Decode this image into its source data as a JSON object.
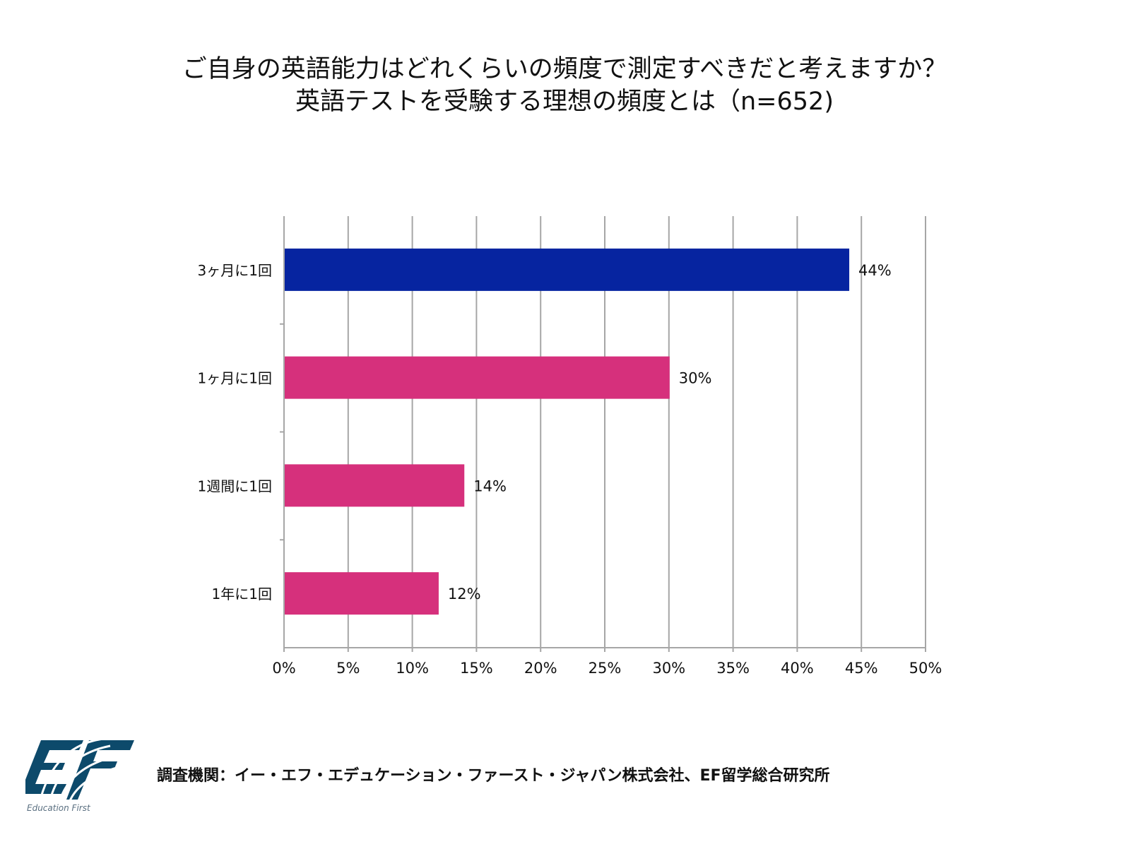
{
  "chart_data": {
    "type": "bar",
    "orientation": "horizontal",
    "title": "ご自身の英語能力はどれくらいの頻度で測定すべきだと考えますか？",
    "subtitle": "英語テストを受験する理想の頻度とは（n=652)",
    "categories": [
      "3ヶ月に1回",
      "1ヶ月に1回",
      "1週間に1回",
      "1年に1回"
    ],
    "values": [
      44,
      30,
      14,
      12
    ],
    "data_labels": [
      "44%",
      "30%",
      "14%",
      "12%"
    ],
    "colors": [
      "#0624a0",
      "#d6307c",
      "#d6307c",
      "#d6307c"
    ],
    "xlim": [
      0,
      50
    ],
    "xticks": [
      "0%",
      "5%",
      "10%",
      "15%",
      "20%",
      "25%",
      "30%",
      "35%",
      "40%",
      "45%",
      "50%"
    ],
    "xlabel": "",
    "ylabel": "",
    "grid": true
  },
  "footer": {
    "source": "調査機関：イー・エフ・エデュケーション・ファースト・ジャパン株式会社、EF留学総合研究所"
  },
  "logo": {
    "mark": "EF",
    "text": "Education First",
    "color": "#0d4a6b"
  }
}
